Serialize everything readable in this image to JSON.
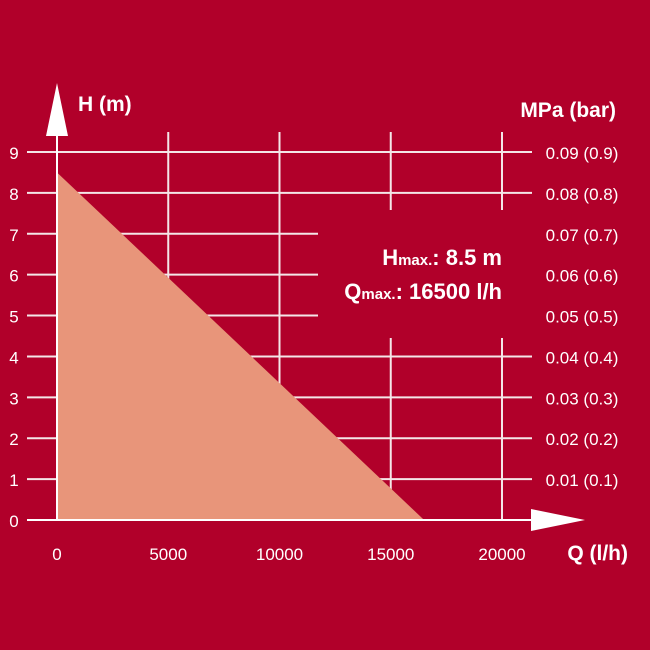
{
  "chart_data": {
    "type": "area",
    "xlabel": "Q (l/h)",
    "ylabel": "H (m)",
    "y2label": "MPa (bar)",
    "xlim": [
      0,
      20000
    ],
    "ylim": [
      0,
      9
    ],
    "x_ticks": [
      "0",
      "5000",
      "10000",
      "15000",
      "20000"
    ],
    "x_tick_values": [
      0,
      5000,
      10000,
      15000,
      20000
    ],
    "y_ticks": [
      "0",
      "1",
      "2",
      "3",
      "4",
      "5",
      "6",
      "7",
      "8",
      "9"
    ],
    "y2_ticks": [
      "",
      "0.01 (0.1)",
      "0.02 (0.2)",
      "0.03 (0.3)",
      "0.04 (0.4)",
      "0.05 (0.5)",
      "0.06 (0.6)",
      "0.07 (0.7)",
      "0.08 (0.8)",
      "0.09 (0.9)"
    ],
    "grid": true,
    "series": [
      {
        "x": [
          0,
          16500
        ],
        "y": [
          8.5,
          0
        ]
      }
    ],
    "annotations": [
      {
        "main": "H",
        "sub": "max.",
        "rest": ": 8.5 m"
      },
      {
        "main": "Q",
        "sub": "max.",
        "rest": ": 16500 l/h"
      }
    ]
  },
  "colors": {
    "background": "#B1002A",
    "fill": "#E8957A",
    "lines": "#F4E6E8"
  }
}
